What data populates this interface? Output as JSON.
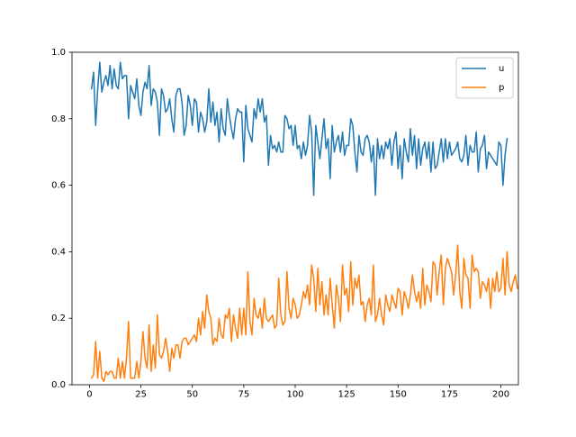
{
  "chart_data": {
    "type": "line",
    "title": "",
    "xlabel": "",
    "ylabel": "",
    "xlim": [
      -8.5,
      208.5
    ],
    "ylim": [
      0.0,
      1.0
    ],
    "xticks": [
      0,
      25,
      50,
      75,
      100,
      125,
      150,
      175,
      200
    ],
    "yticks": [
      0.0,
      0.2,
      0.4,
      0.6,
      0.8,
      1.0
    ],
    "xtick_labels": [
      "0",
      "25",
      "50",
      "75",
      "100",
      "125",
      "150",
      "175",
      "200"
    ],
    "ytick_labels": [
      "0.0",
      "0.2",
      "0.4",
      "0.6",
      "0.8",
      "1.0"
    ],
    "legend_position": "top-right",
    "grid": false,
    "x_start": 1,
    "x_step": 1,
    "series": [
      {
        "name": "u",
        "color": "#1f77b4",
        "values": [
          0.89,
          0.94,
          0.78,
          0.89,
          0.97,
          0.88,
          0.91,
          0.93,
          0.9,
          0.96,
          0.89,
          0.95,
          0.9,
          0.89,
          0.97,
          0.92,
          0.93,
          0.93,
          0.8,
          0.9,
          0.88,
          0.86,
          0.92,
          0.84,
          0.81,
          0.88,
          0.91,
          0.89,
          0.96,
          0.84,
          0.89,
          0.88,
          0.85,
          0.75,
          0.89,
          0.87,
          0.82,
          0.83,
          0.86,
          0.8,
          0.76,
          0.87,
          0.89,
          0.89,
          0.85,
          0.75,
          0.78,
          0.87,
          0.84,
          0.78,
          0.86,
          0.85,
          0.76,
          0.82,
          0.8,
          0.76,
          0.79,
          0.89,
          0.79,
          0.85,
          0.78,
          0.82,
          0.73,
          0.83,
          0.77,
          0.75,
          0.86,
          0.81,
          0.77,
          0.74,
          0.8,
          0.83,
          0.82,
          0.82,
          0.67,
          0.84,
          0.77,
          0.75,
          0.73,
          0.83,
          0.8,
          0.86,
          0.82,
          0.86,
          0.79,
          0.81,
          0.66,
          0.75,
          0.71,
          0.72,
          0.7,
          0.73,
          0.7,
          0.7,
          0.81,
          0.8,
          0.77,
          0.78,
          0.72,
          0.78,
          0.71,
          0.72,
          0.68,
          0.73,
          0.69,
          0.72,
          0.81,
          0.76,
          0.57,
          0.78,
          0.73,
          0.68,
          0.74,
          0.8,
          0.71,
          0.74,
          0.62,
          0.78,
          0.7,
          0.73,
          0.75,
          0.7,
          0.76,
          0.69,
          0.72,
          0.72,
          0.8,
          0.78,
          0.7,
          0.64,
          0.75,
          0.7,
          0.69,
          0.74,
          0.75,
          0.73,
          0.67,
          0.72,
          0.57,
          0.74,
          0.68,
          0.72,
          0.68,
          0.73,
          0.71,
          0.74,
          0.66,
          0.73,
          0.76,
          0.65,
          0.72,
          0.62,
          0.74,
          0.7,
          0.67,
          0.77,
          0.69,
          0.75,
          0.65,
          0.74,
          0.66,
          0.71,
          0.73,
          0.68,
          0.73,
          0.64,
          0.73,
          0.65,
          0.66,
          0.7,
          0.74,
          0.67,
          0.74,
          0.68,
          0.73,
          0.69,
          0.7,
          0.71,
          0.73,
          0.68,
          0.67,
          0.69,
          0.75,
          0.66,
          0.72,
          0.7,
          0.7,
          0.76,
          0.64,
          0.71,
          0.72,
          0.75,
          0.65,
          0.7,
          0.69,
          0.68,
          0.67,
          0.66,
          0.73,
          0.72,
          0.6,
          0.69,
          0.74
        ]
      },
      {
        "name": "p",
        "color": "#ff7f0e",
        "values": [
          0.02,
          0.03,
          0.13,
          0.02,
          0.1,
          0.02,
          0.01,
          0.04,
          0.03,
          0.04,
          0.04,
          0.02,
          0.02,
          0.08,
          0.02,
          0.07,
          0.02,
          0.08,
          0.19,
          0.02,
          0.02,
          0.02,
          0.07,
          0.02,
          0.07,
          0.16,
          0.08,
          0.05,
          0.18,
          0.04,
          0.12,
          0.05,
          0.21,
          0.09,
          0.08,
          0.1,
          0.14,
          0.1,
          0.04,
          0.11,
          0.08,
          0.12,
          0.12,
          0.08,
          0.13,
          0.14,
          0.14,
          0.12,
          0.13,
          0.14,
          0.15,
          0.13,
          0.2,
          0.15,
          0.22,
          0.17,
          0.27,
          0.22,
          0.2,
          0.12,
          0.14,
          0.13,
          0.2,
          0.15,
          0.14,
          0.21,
          0.2,
          0.23,
          0.13,
          0.21,
          0.17,
          0.14,
          0.23,
          0.15,
          0.23,
          0.15,
          0.34,
          0.19,
          0.15,
          0.26,
          0.21,
          0.2,
          0.23,
          0.17,
          0.26,
          0.2,
          0.19,
          0.2,
          0.21,
          0.17,
          0.18,
          0.32,
          0.21,
          0.18,
          0.19,
          0.34,
          0.23,
          0.2,
          0.26,
          0.24,
          0.2,
          0.21,
          0.24,
          0.28,
          0.26,
          0.3,
          0.24,
          0.36,
          0.32,
          0.22,
          0.35,
          0.24,
          0.31,
          0.21,
          0.27,
          0.21,
          0.32,
          0.24,
          0.17,
          0.3,
          0.26,
          0.19,
          0.36,
          0.27,
          0.29,
          0.22,
          0.37,
          0.24,
          0.32,
          0.29,
          0.33,
          0.24,
          0.25,
          0.19,
          0.24,
          0.26,
          0.21,
          0.36,
          0.19,
          0.21,
          0.26,
          0.21,
          0.18,
          0.27,
          0.24,
          0.22,
          0.27,
          0.25,
          0.23,
          0.29,
          0.28,
          0.21,
          0.28,
          0.26,
          0.23,
          0.27,
          0.33,
          0.28,
          0.25,
          0.28,
          0.23,
          0.35,
          0.24,
          0.3,
          0.28,
          0.25,
          0.37,
          0.36,
          0.27,
          0.34,
          0.39,
          0.24,
          0.35,
          0.38,
          0.36,
          0.34,
          0.27,
          0.33,
          0.42,
          0.28,
          0.23,
          0.38,
          0.33,
          0.32,
          0.23,
          0.39,
          0.34,
          0.35,
          0.34,
          0.26,
          0.31,
          0.3,
          0.28,
          0.32,
          0.23,
          0.32,
          0.28,
          0.34,
          0.28,
          0.29,
          0.38,
          0.27,
          0.4,
          0.3,
          0.28,
          0.31,
          0.33,
          0.29
        ]
      }
    ]
  }
}
